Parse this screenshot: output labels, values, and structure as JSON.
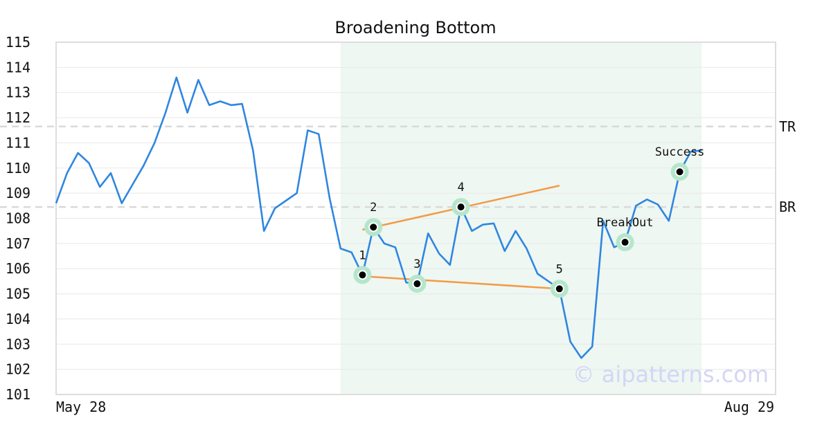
{
  "chart_data": {
    "type": "line",
    "title": "Broadening Bottom",
    "xlabel": "",
    "ylabel": "",
    "ylim": [
      101,
      115
    ],
    "yticks": [
      101,
      102,
      103,
      104,
      105,
      106,
      107,
      108,
      109,
      110,
      111,
      112,
      113,
      114,
      115
    ],
    "x_tick_labels": [
      "May 28",
      "Aug 29"
    ],
    "grid": "horizontal",
    "colors": {
      "line": "#2f86e0",
      "trendline": "#f39a45",
      "marker_halo": "#b5e6cc",
      "marker": "#000000",
      "pattern_region": "#eef7f2",
      "ref_line": "#d9d9d9",
      "watermark": "#d5d5f5",
      "frame": "#dddddd",
      "grid": "#e8e8e8"
    },
    "series": [
      {
        "values": [
          108.6,
          109.8,
          110.6,
          110.2,
          109.25,
          109.8,
          108.6,
          109.35,
          110.1,
          111.0,
          112.2,
          113.6,
          112.2,
          113.5,
          112.5,
          112.65,
          112.5,
          112.55,
          110.7,
          107.5,
          108.4,
          108.7,
          109.0,
          111.5,
          111.35,
          108.8,
          106.8,
          106.65,
          105.75,
          107.65,
          107.0,
          106.85,
          105.45,
          105.4,
          107.4,
          106.6,
          106.15,
          108.45,
          107.5,
          107.75,
          107.8,
          106.7,
          107.5,
          106.8,
          105.8,
          105.5,
          105.2,
          103.1,
          102.45,
          102.9,
          107.9,
          106.85,
          107.05,
          108.5,
          108.75,
          108.55,
          107.9,
          109.85,
          110.65,
          110.7
        ]
      }
    ],
    "pattern_region": {
      "start_index": 26,
      "end_index": 59
    },
    "reference_lines": [
      {
        "label": "TR",
        "value": 111.65
      },
      {
        "label": "BR",
        "value": 108.45
      }
    ],
    "points": [
      {
        "label": "1",
        "index": 28,
        "value": 105.75
      },
      {
        "label": "2",
        "index": 29,
        "value": 107.65
      },
      {
        "label": "3",
        "index": 33,
        "value": 105.4
      },
      {
        "label": "4",
        "index": 37,
        "value": 108.45
      },
      {
        "label": "5",
        "index": 46,
        "value": 105.2
      },
      {
        "label": "BreakOut",
        "index": 52,
        "value": 107.05
      },
      {
        "label": "Success",
        "index": 57,
        "value": 109.85
      }
    ],
    "trendlines": [
      {
        "from": {
          "index": 28,
          "value": 105.7
        },
        "to": {
          "index": 46,
          "value": 105.2
        }
      },
      {
        "from": {
          "index": 28,
          "value": 107.55
        },
        "to": {
          "index": 46,
          "value": 109.3
        }
      }
    ],
    "watermark": "© aipatterns.com"
  }
}
